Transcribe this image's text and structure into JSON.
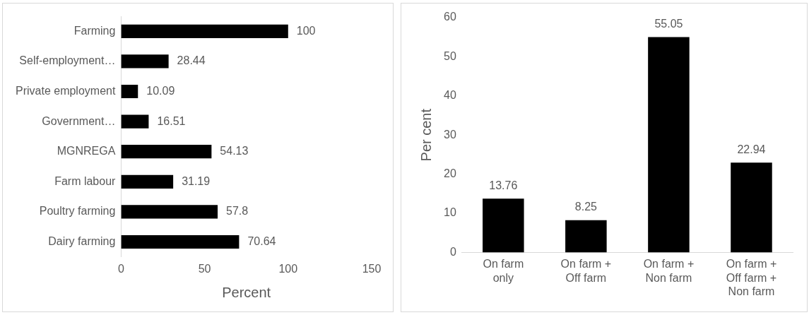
{
  "chart_data": [
    {
      "type": "bar",
      "orientation": "horizontal",
      "categories": [
        "Farming",
        "Self-employment…",
        "Private employment",
        "Government…",
        "MGNREGA",
        "Farm labour",
        "Poultry farming",
        "Dairy farming"
      ],
      "values": [
        100,
        28.44,
        10.09,
        16.51,
        54.13,
        31.19,
        57.8,
        70.64
      ],
      "color": "#000000",
      "xlim": [
        0,
        150
      ],
      "xticks": [
        0,
        50,
        100,
        150
      ],
      "xlabel": "Percent",
      "data_labels": true,
      "grid": false,
      "legend": false
    },
    {
      "type": "bar",
      "categories": [
        "On farm only",
        "On farm + Off farm",
        "On farm + Non farm",
        "On farm + Off farm + Non farm"
      ],
      "values": [
        13.76,
        8.25,
        55.05,
        22.94
      ],
      "color": "#000000",
      "ylim": [
        0,
        60
      ],
      "yticks": [
        0,
        10,
        20,
        30,
        40,
        50,
        60
      ],
      "ylabel": "Per cent",
      "data_labels": true,
      "grid": false,
      "legend": false
    }
  ]
}
